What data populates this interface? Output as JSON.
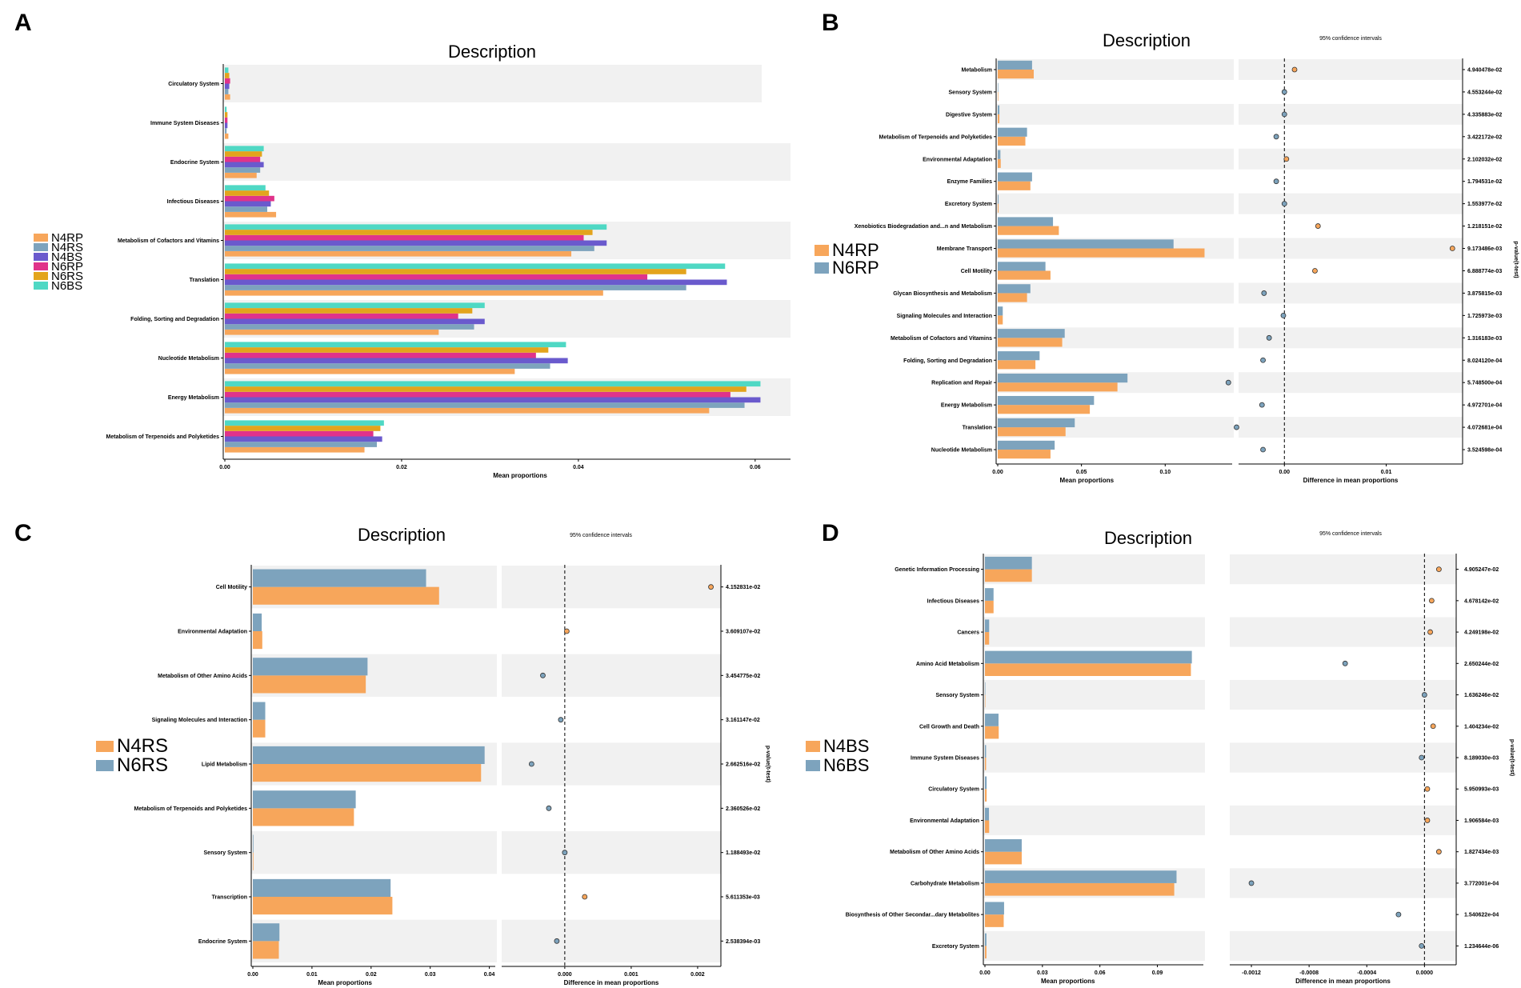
{
  "chart_data": [
    {
      "panel": "A",
      "type": "bar",
      "orientation": "horizontal",
      "title": "Description",
      "xlabel": "Mean proportions",
      "xlim": [
        0,
        0.064
      ],
      "xticks": [
        "0.00",
        "0.02",
        "0.04",
        "0.06"
      ],
      "xtick_values": [
        0,
        0.02,
        0.04,
        0.06
      ],
      "categories": [
        "Circulatory System",
        "Immune System Diseases",
        "Endocrine System",
        "Infectious Diseases",
        "Metabolism of Cofactors and Vitamins",
        "Translation",
        "Folding, Sorting and Degradation",
        "Nucleotide Metabolism",
        "Energy Metabolism",
        "Metabolism of Terpenoids and Polyketides"
      ],
      "series": [
        {
          "name": "N4RP",
          "color": "#f7a65b",
          "values": [
            0.0006,
            0.0004,
            0.0036,
            0.0058,
            0.0392,
            0.0428,
            0.0242,
            0.0328,
            0.0548,
            0.0158
          ]
        },
        {
          "name": "N4RS",
          "color": "#7da3bd",
          "values": [
            0.0004,
            0.0002,
            0.004,
            0.0048,
            0.0418,
            0.0522,
            0.0282,
            0.0368,
            0.0588,
            0.0172
          ]
        },
        {
          "name": "N4BS",
          "color": "#6a5acd",
          "values": [
            0.0005,
            0.0003,
            0.0044,
            0.0052,
            0.0432,
            0.0568,
            0.0294,
            0.0388,
            0.0606,
            0.0178
          ]
        },
        {
          "name": "N6RP",
          "color": "#e0338a",
          "values": [
            0.0006,
            0.0003,
            0.004,
            0.0056,
            0.0406,
            0.0478,
            0.0264,
            0.0352,
            0.0572,
            0.0168
          ]
        },
        {
          "name": "N6RS",
          "color": "#e3a41c",
          "values": [
            0.0005,
            0.0003,
            0.0042,
            0.005,
            0.0416,
            0.0522,
            0.028,
            0.0366,
            0.059,
            0.0176
          ]
        },
        {
          "name": "N6BS",
          "color": "#4fd8c4",
          "values": [
            0.0004,
            0.0002,
            0.0044,
            0.0046,
            0.0432,
            0.0566,
            0.0294,
            0.0386,
            0.0606,
            0.018
          ]
        }
      ]
    },
    {
      "panel": "B",
      "type": "bar",
      "orientation": "horizontal",
      "title": "Description",
      "xlabel": "Mean proportions",
      "xlim": [
        0,
        0.14
      ],
      "xticks": [
        "0.00",
        "0.05",
        "0.10"
      ],
      "xtick_values": [
        0,
        0.05,
        0.1
      ],
      "ci_title": "95% confidence intervals",
      "ci_xlabel": "Difference in mean proportions",
      "ci_xlim": [
        -0.0045,
        0.0175
      ],
      "ci_xticks": [
        "0.00",
        "0.01"
      ],
      "ci_xtick_values": [
        0,
        0.01
      ],
      "pvalue_title": "p-value(t-test)",
      "categories": [
        "Metabolism",
        "Sensory System",
        "Digestive System",
        "Metabolism of Terpenoids and Polyketides",
        "Environmental Adaptation",
        "Enzyme Families",
        "Excretory System",
        "Xenobiotics Biodegradation and...n and Metabolism",
        "Membrane Transport",
        "Cell Motility",
        "Glycan Biosynthesis and Metabolism",
        "Signaling Molecules and Interaction",
        "Metabolism of Cofactors and Vitamins",
        "Folding, Sorting and Degradation",
        "Replication and Repair",
        "Energy Metabolism",
        "Translation",
        "Nucleotide Metabolism"
      ],
      "series": [
        {
          "name": "N4RP",
          "color": "#f7a65b",
          "values": [
            0.0215,
            0.0003,
            0.001,
            0.0165,
            0.0018,
            0.0195,
            0.0005,
            0.0365,
            0.1235,
            0.0315,
            0.0175,
            0.003,
            0.0385,
            0.0225,
            0.0715,
            0.055,
            0.0405,
            0.0315
          ]
        },
        {
          "name": "N6RP",
          "color": "#7da3bd",
          "values": [
            0.0205,
            0.0003,
            0.001,
            0.0175,
            0.0016,
            0.0205,
            0.0005,
            0.033,
            0.105,
            0.0285,
            0.0195,
            0.003,
            0.04,
            0.025,
            0.0775,
            0.0575,
            0.046,
            0.034
          ]
        }
      ],
      "differences": [
        0.001,
        0.0,
        0.0,
        -0.0008,
        0.0002,
        -0.0008,
        0.0,
        0.0033,
        0.0165,
        0.003,
        -0.002,
        -0.0001,
        -0.0015,
        -0.0021,
        -0.0055,
        -0.0022,
        -0.0047,
        -0.0021
      ],
      "pvalues": [
        "4.940478e-02",
        "4.553244e-02",
        "4.335883e-02",
        "3.422172e-02",
        "2.102032e-02",
        "1.794531e-02",
        "1.553977e-02",
        "1.218151e-02",
        "9.173486e-03",
        "6.888774e-03",
        "3.875815e-03",
        "1.725973e-03",
        "1.316183e-03",
        "8.024120e-04",
        "5.748500e-04",
        "4.972701e-04",
        "4.072681e-04",
        "3.524598e-04"
      ]
    },
    {
      "panel": "C",
      "type": "bar",
      "orientation": "horizontal",
      "title": "Description",
      "xlabel": "Mean proportions",
      "xlim": [
        0,
        0.041
      ],
      "xticks": [
        "0.00",
        "0.01",
        "0.02",
        "0.03",
        "0.04"
      ],
      "xtick_values": [
        0,
        0.01,
        0.02,
        0.03,
        0.04
      ],
      "ci_title": "95% confidence intervals",
      "ci_xlabel": "Difference in mean proportions",
      "ci_xlim": [
        -0.00095,
        0.00235
      ],
      "ci_xticks": [
        "0.000",
        "0.001",
        "0.002"
      ],
      "ci_xtick_values": [
        0,
        0.001,
        0.002
      ],
      "pvalue_title": "p-value(t-test)",
      "categories": [
        "Cell Motility",
        "Environmental Adaptation",
        "Metabolism of Other Amino Acids",
        "Signaling Molecules and Interaction",
        "Lipid Metabolism",
        "Metabolism of Terpenoids and Polyketides",
        "Sensory System",
        "Transcription",
        "Endocrine System"
      ],
      "series": [
        {
          "name": "N4RS",
          "color": "#f7a65b",
          "values": [
            0.0315,
            0.0016,
            0.0191,
            0.0021,
            0.0386,
            0.0171,
            0.0001,
            0.0236,
            0.0044
          ]
        },
        {
          "name": "N6RS",
          "color": "#7da3bd",
          "values": [
            0.0293,
            0.0015,
            0.0194,
            0.0021,
            0.0392,
            0.0174,
            0.0001,
            0.0233,
            0.0045
          ]
        }
      ],
      "differences": [
        0.0022,
        3e-05,
        -0.00033,
        -6e-05,
        -0.0005,
        -0.00024,
        0.0,
        0.0003,
        -0.00012
      ],
      "pvalues": [
        "4.152831e-02",
        "3.609107e-02",
        "3.454775e-02",
        "3.161147e-02",
        "2.662516e-02",
        "2.360526e-02",
        "1.188493e-02",
        "5.611353e-03",
        "2.538394e-03"
      ]
    },
    {
      "panel": "D",
      "type": "bar",
      "orientation": "horizontal",
      "title": "Description",
      "xlabel": "Mean proportions",
      "xlim": [
        0,
        0.114
      ],
      "xticks": [
        "0.00",
        "0.03",
        "0.06",
        "0.09"
      ],
      "xtick_values": [
        0,
        0.03,
        0.06,
        0.09
      ],
      "ci_title": "95% confidence intervals",
      "ci_xlabel": "Difference in mean proportions",
      "ci_xlim": [
        -0.00135,
        0.00022
      ],
      "ci_xticks": [
        "-0.0012",
        "-0.0008",
        "-0.0004",
        "0.0000"
      ],
      "ci_xtick_values": [
        -0.0012,
        -0.0008,
        -0.0004,
        0
      ],
      "pvalue_title": "p-value(t-test)",
      "categories": [
        "Genetic Information Processing",
        "Infectious Diseases",
        "Cancers",
        "Amino Acid Metabolism",
        "Sensory System",
        "Cell Growth and Death",
        "Immune System Diseases",
        "Circulatory System",
        "Environmental Adaptation",
        "Metabolism of Other Amino Acids",
        "Carbohydrate Metabolism",
        "Biosynthesis of Other Secondar...dary Metabolites",
        "Excretory System"
      ],
      "series": [
        {
          "name": "N4BS",
          "color": "#f7a65b",
          "values": [
            0.0245,
            0.0045,
            0.0022,
            0.1075,
            0.0001,
            0.0072,
            0.0006,
            0.0009,
            0.0022,
            0.0192,
            0.0988,
            0.0098,
            0.0008
          ]
        },
        {
          "name": "N6BS",
          "color": "#7da3bd",
          "values": [
            0.0245,
            0.0045,
            0.0022,
            0.108,
            0.0001,
            0.0071,
            0.0006,
            0.0009,
            0.0021,
            0.0192,
            0.1,
            0.01,
            0.0008
          ]
        }
      ],
      "differences": [
        0.0001,
        5e-05,
        4e-05,
        -0.00055,
        0.0,
        6e-05,
        -2e-05,
        2e-05,
        2e-05,
        0.0001,
        -0.0012,
        -0.00018,
        -2e-05
      ],
      "pvalues": [
        "4.905247e-02",
        "4.678142e-02",
        "4.249198e-02",
        "2.650244e-02",
        "1.636246e-02",
        "1.404234e-02",
        "8.189030e-03",
        "5.950993e-03",
        "1.906584e-03",
        "1.827434e-03",
        "3.772001e-04",
        "1.540622e-04",
        "1.234644e-06"
      ]
    }
  ]
}
